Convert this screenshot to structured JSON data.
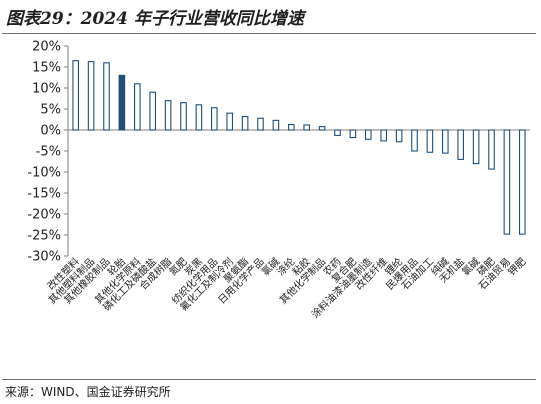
{
  "title": "图表29：2024 年子行业营收同比增速",
  "source": "来源：WIND、国金证券研究所",
  "colors": {
    "bar_edge": "#1f4e79",
    "bar_fill_normal": "#ffffff",
    "bar_fill_highlight": "#1f4e79",
    "axis": "#7f7f7f"
  },
  "chart_data": {
    "type": "bar",
    "ylim": [
      -30,
      20
    ],
    "yticks": [
      "20%",
      "15%",
      "10%",
      "5%",
      "0%",
      "-5%",
      "-10%",
      "-15%",
      "-20%",
      "-25%",
      "-30%"
    ],
    "ytick_values": [
      20,
      15,
      10,
      5,
      0,
      -5,
      -10,
      -15,
      -20,
      -25,
      -30
    ],
    "grid": false,
    "highlight_index": 3,
    "categories": [
      "改性塑料",
      "其他塑料制品",
      "其他橡胶制品",
      "轮胎",
      "其他化学原料",
      "磷化工及磷酸盐",
      "合成树脂",
      "氮肥",
      "炭黑",
      "纺织化学用品",
      "氟化工及制冷剂",
      "聚氨酯",
      "日用化学产品",
      "氯碱",
      "涤纶",
      "粘胶",
      "其他化学制品",
      "农药",
      "复合肥",
      "涂料油漆油墨制造",
      "改性纤维",
      "锂纶",
      "民爆用品",
      "石油加工",
      "纯碱",
      "无机盐",
      "氯碱",
      "磷肥",
      "石油贸易",
      "钾肥"
    ],
    "values": [
      16.5,
      16.3,
      16.0,
      13.0,
      11.0,
      9.0,
      7.0,
      6.5,
      6.0,
      5.3,
      4.0,
      3.2,
      2.8,
      2.3,
      1.3,
      1.2,
      0.8,
      -1.3,
      -1.8,
      -2.2,
      -2.6,
      -2.8,
      -5.0,
      -5.3,
      -5.5,
      -7.0,
      -8.0,
      -9.3,
      -24.8,
      -24.8
    ]
  }
}
